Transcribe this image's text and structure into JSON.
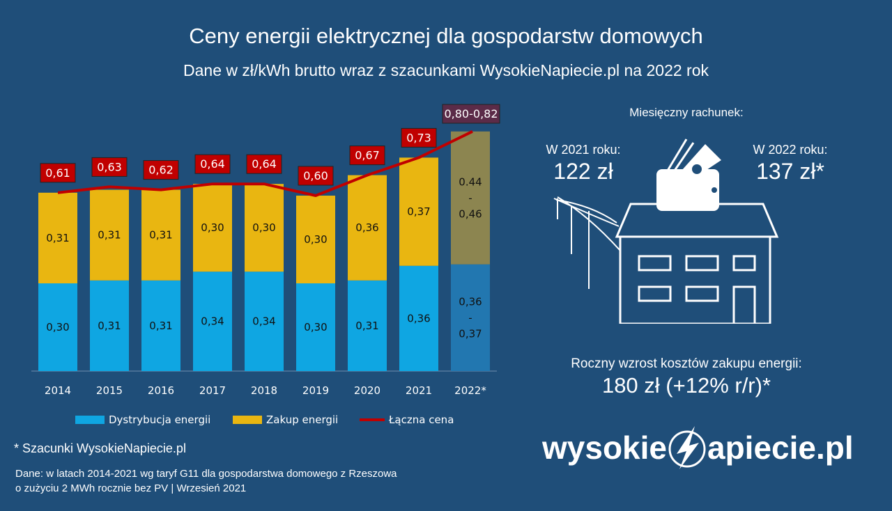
{
  "header": {
    "title": "Ceny energii elektrycznej dla gospodarstw domowych",
    "subtitle": "Dane w zł/kWh brutto wraz z szacunkami WysokieNapiecie.pl na 2022 rok"
  },
  "chart_data": {
    "type": "bar",
    "stacked": true,
    "categories": [
      "2014",
      "2015",
      "2016",
      "2017",
      "2018",
      "2019",
      "2020",
      "2021",
      "2022*"
    ],
    "series": [
      {
        "name": "Dystrybucja energii",
        "color": "#0fa6e2",
        "values": [
          0.3,
          0.31,
          0.31,
          0.34,
          0.34,
          0.3,
          0.31,
          0.36,
          0.365
        ],
        "labels": [
          "0,30",
          "0,31",
          "0,31",
          "0,34",
          "0,34",
          "0,30",
          "0,31",
          "0,36",
          "0,36\n-\n0,37"
        ]
      },
      {
        "name": "Zakup energii",
        "color": "#e9b611",
        "values": [
          0.31,
          0.31,
          0.31,
          0.3,
          0.3,
          0.3,
          0.36,
          0.37,
          0.45
        ],
        "labels": [
          "0,31",
          "0,31",
          "0,31",
          "0,30",
          "0,30",
          "0,30",
          "0,36",
          "0,37",
          "0.44\n-\n0,46"
        ]
      },
      {
        "name": "Łączna cena",
        "type": "line",
        "color": "#c00000",
        "values": [
          0.61,
          0.63,
          0.62,
          0.64,
          0.64,
          0.6,
          0.67,
          0.73,
          0.81
        ],
        "labels": [
          "0,61",
          "0,63",
          "0,62",
          "0,64",
          "0,64",
          "0,60",
          "0,67",
          "0,73",
          "0,80-0,82"
        ]
      }
    ],
    "estimate_colors": {
      "distribution": "#2277b0",
      "purchase": "#8c8550",
      "label_box": "#5b2b48"
    },
    "legend_position": "bottom",
    "grid": false
  },
  "right": {
    "monthly_label": "Miesięczny rachunek:",
    "y2021_label": "W 2021 roku:",
    "y2021_value": "122 zł",
    "y2022_label": "W 2022 roku:",
    "y2022_value": "137 zł*",
    "annual_label": "Roczny wzrost kosztów zakupu energii:",
    "annual_value": "180 zł (+12% r/r)*"
  },
  "footer": {
    "footnote": "* Szacunki WysokieNapiecie.pl",
    "source_line1": "Dane: w latach 2014-2021 wg taryf G11 dla gospodarstwa domowego z Rzeszowa",
    "source_line2": "o zużyciu 2 MWh rocznie bez PV  | Wrzesień 2021",
    "logo_left": "wysokie",
    "logo_right": "apiecie.pl"
  }
}
